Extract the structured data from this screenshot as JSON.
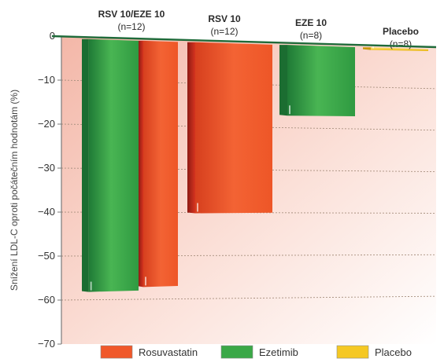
{
  "chart_data": {
    "type": "bar",
    "ylabel": "Snížení LDL-C oproti počátečním hodnotám (%)",
    "ylim": [
      -70,
      0
    ],
    "yticks": [
      0,
      -10,
      -20,
      -30,
      -40,
      -50,
      -60,
      -70
    ],
    "grid": true,
    "groups": [
      {
        "title": "RSV 10/EZE 10",
        "n": "(n=12)",
        "bars": [
          {
            "series": "Ezetimib",
            "value": -58
          },
          {
            "series": "Rosuvastatin",
            "value": -57
          }
        ]
      },
      {
        "title": "RSV 10",
        "n": "(n=12)",
        "bars": [
          {
            "series": "Rosuvastatin",
            "value": -40
          }
        ]
      },
      {
        "title": "EZE 10",
        "n": "(n=8)",
        "bars": [
          {
            "series": "Ezetimib",
            "value": -17
          }
        ]
      },
      {
        "title": "Placebo",
        "n": "(n=8)",
        "bars": [
          {
            "series": "Placebo",
            "value": -1
          }
        ]
      }
    ],
    "legend": {
      "placement": "bottom",
      "items": [
        {
          "label": "Rosuvastatin",
          "color": "#f0582a"
        },
        {
          "label": "Ezetimib",
          "color": "#3aa847"
        },
        {
          "label": "Placebo",
          "color": "#f5c823"
        }
      ]
    },
    "colors": {
      "Rosuvastatin": "#f0582a",
      "Ezetimib": "#3aa847",
      "Placebo": "#f5c823"
    }
  }
}
